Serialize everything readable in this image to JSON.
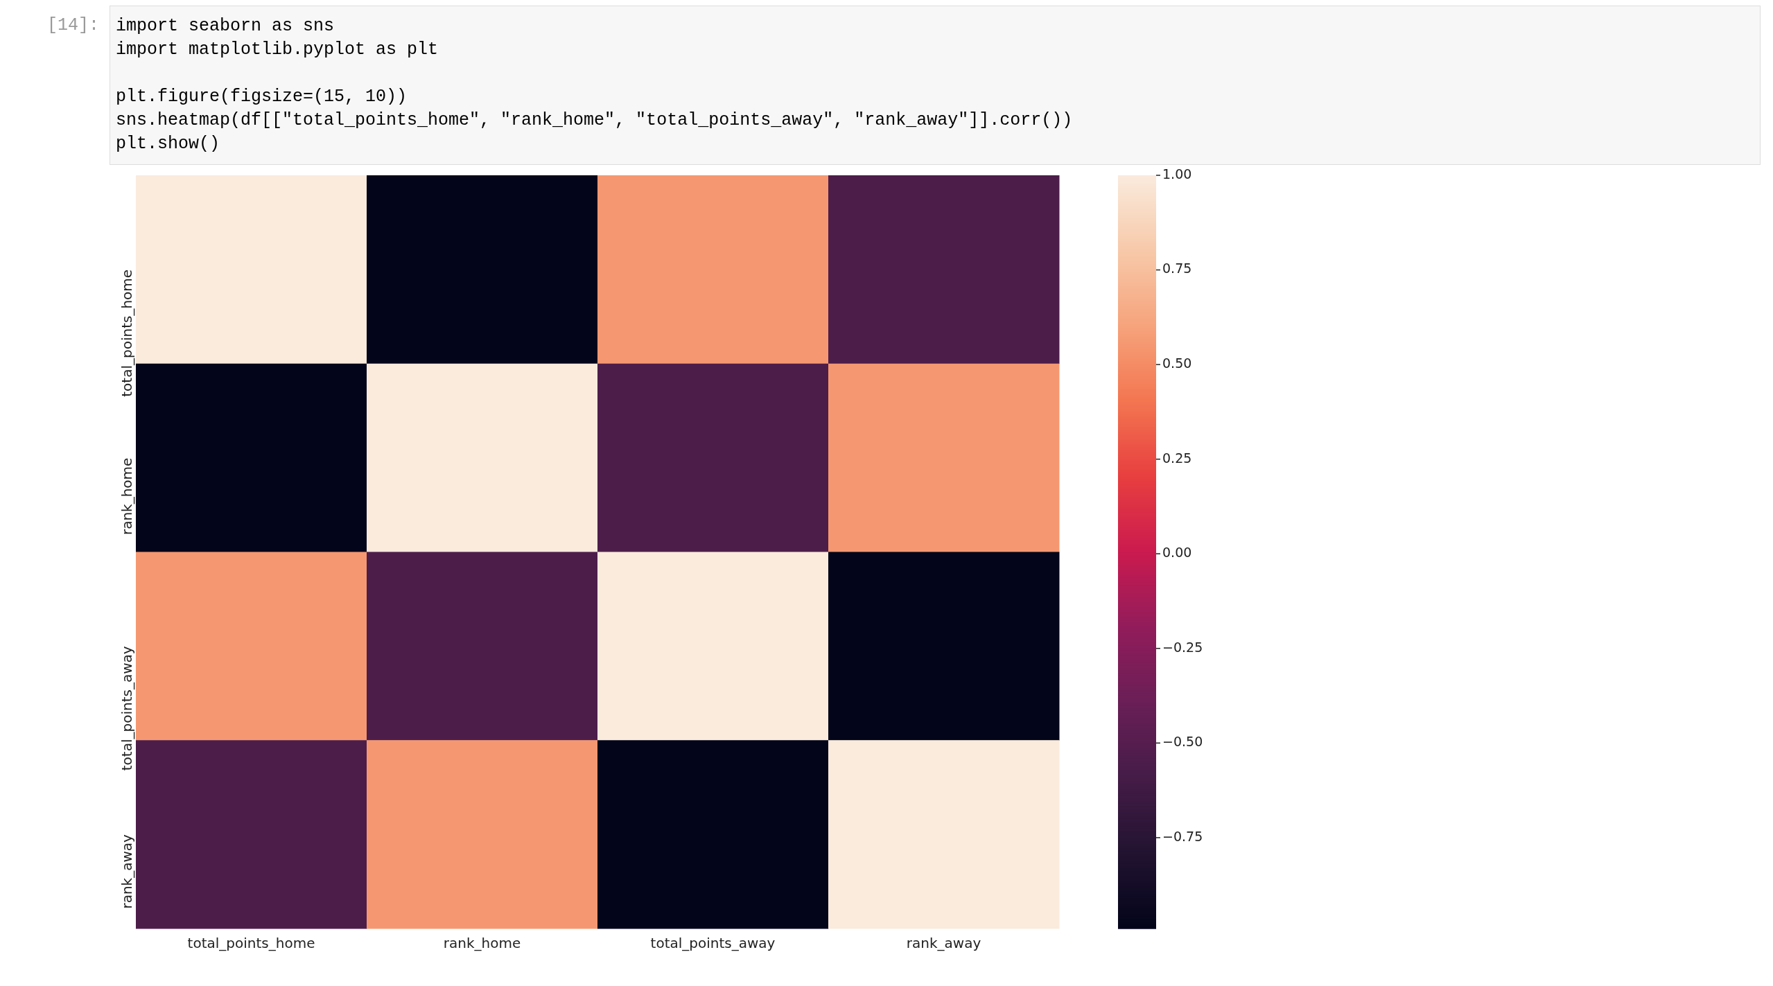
{
  "chart_data": {
    "type": "heatmap",
    "categories": [
      "total_points_home",
      "rank_home",
      "total_points_away",
      "rank_away"
    ],
    "y_categories": [
      "total_points_home",
      "rank_home",
      "total_points_away",
      "rank_away"
    ],
    "cells": [
      [
        1,
        -0.99,
        0.55,
        -0.55
      ],
      [
        -0.99,
        1,
        -0.55,
        0.55
      ],
      [
        0.55,
        -0.55,
        1,
        -0.99
      ],
      [
        -0.55,
        0.55,
        -0.99,
        1
      ]
    ],
    "clim": [
      -0.99,
      1
    ],
    "cticks": [
      {
        "value": 1,
        "label": "1.00"
      },
      {
        "value": 0.75,
        "label": "0.75"
      },
      {
        "value": 0.5,
        "label": "0.50"
      },
      {
        "value": 0.25,
        "label": "0.25"
      },
      {
        "value": 0,
        "label": "0.00"
      },
      {
        "value": -0.25,
        "label": "−0.25"
      },
      {
        "value": -0.5,
        "label": "−0.50"
      },
      {
        "value": -0.75,
        "label": "−0.75"
      }
    ],
    "annotations": [
      "[14]:",
      "import seaborn as sns",
      "import matplotlib.pyplot as plt",
      "plt.figure(figsize=(15, 10))",
      "sns.heatmap(df[[\"total_points_home\", \"rank_home\", \"total_points_away\", \"rank_away\"]].corr())",
      "plt.show()"
    ]
  }
}
